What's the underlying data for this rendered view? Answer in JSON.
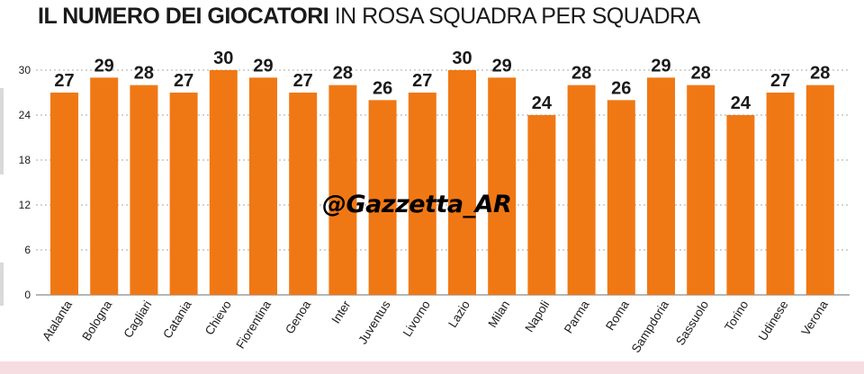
{
  "title": {
    "bold_part": "IL NUMERO DEI GIOCATORI",
    "normal_part": "IN ROSA SQUADRA PER SQUADRA"
  },
  "watermark": "@Gazzetta_AR",
  "colors": {
    "bar": "#f07814",
    "grid": "#8a8a8a",
    "text": "#1a1a1a",
    "band": "#f5dde2"
  },
  "chart_data": {
    "type": "bar",
    "title": "IL NUMERO DEI GIOCATORI IN ROSA SQUADRA PER SQUADRA",
    "categories": [
      "Atalanta",
      "Bologna",
      "Cagliari",
      "Catania",
      "Chievo",
      "Fiorentina",
      "Genoa",
      "Inter",
      "Juventus",
      "Livorno",
      "Lazio",
      "Milan",
      "Napoli",
      "Parma",
      "Roma",
      "Sampdoria",
      "Sassuolo",
      "Torino",
      "Udinese",
      "Verona"
    ],
    "values": [
      27,
      29,
      28,
      27,
      30,
      29,
      27,
      28,
      26,
      27,
      30,
      29,
      24,
      28,
      26,
      29,
      28,
      24,
      27,
      28
    ],
    "value_labels": [
      "27",
      "29",
      "28",
      "27",
      "30",
      "29",
      "27",
      "28",
      "26",
      "27",
      "30",
      "29",
      "24",
      "28",
      "26",
      "29",
      "28",
      "24",
      "27",
      "28"
    ],
    "yticks": [
      0,
      6,
      12,
      18,
      24,
      30
    ],
    "ytick_labels": [
      "0",
      "6",
      "12",
      "18",
      "24",
      "30"
    ],
    "ylim": [
      0,
      30
    ],
    "grid": true,
    "xlabel": "",
    "ylabel": ""
  }
}
